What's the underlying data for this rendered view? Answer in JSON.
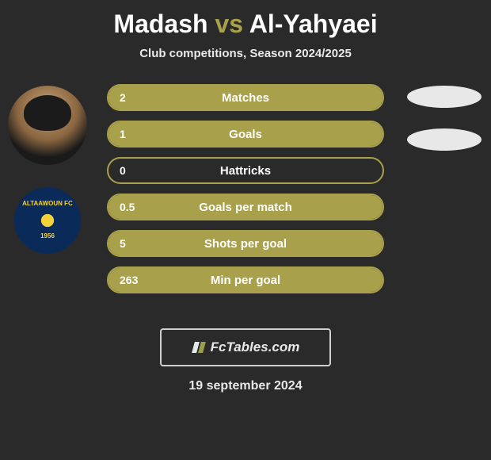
{
  "title": {
    "player1": "Madash",
    "vs": "vs",
    "player2": "Al-Yahyaei"
  },
  "subtitle": "Club competitions, Season 2024/2025",
  "colors": {
    "bar_fill": "#a8a04a",
    "bar_border": "#a8a04a",
    "row_bg": "#2a2a2a",
    "ellipse": "#e8e8e8",
    "text": "#ffffff"
  },
  "stats": [
    {
      "label": "Matches",
      "left_val": "2",
      "left_pct": 100,
      "right_val": "",
      "right_pct": 0
    },
    {
      "label": "Goals",
      "left_val": "1",
      "left_pct": 100,
      "right_val": "",
      "right_pct": 0
    },
    {
      "label": "Hattricks",
      "left_val": "0",
      "left_pct": 0,
      "right_val": "",
      "right_pct": 0
    },
    {
      "label": "Goals per match",
      "left_val": "0.5",
      "left_pct": 100,
      "right_val": "",
      "right_pct": 0
    },
    {
      "label": "Shots per goal",
      "left_val": "5",
      "left_pct": 100,
      "right_val": "",
      "right_pct": 0
    },
    {
      "label": "Min per goal",
      "left_val": "263",
      "left_pct": 100,
      "right_val": "",
      "right_pct": 0
    }
  ],
  "ellipses_visible": [
    true,
    true,
    false,
    false,
    false,
    false
  ],
  "footer_brand": "FcTables.com",
  "date": "19 september 2024",
  "avatars": {
    "player1_alt": "player-photo",
    "club_name_top": "ALTAAWOUN FC",
    "club_year": "1956"
  }
}
